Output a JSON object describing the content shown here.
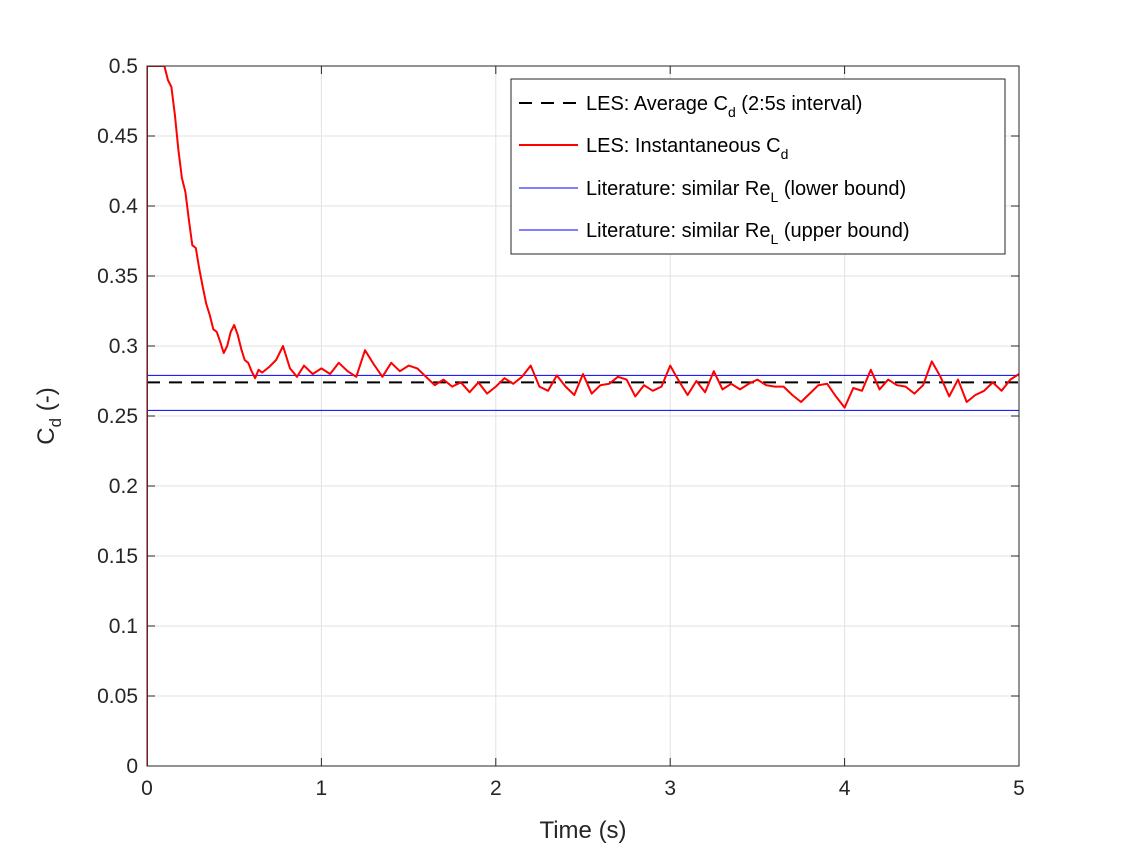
{
  "chart_data": {
    "type": "line",
    "xlabel": "Time (s)",
    "ylabel": {
      "main": "C",
      "sub": "d",
      "tail": " (-)"
    },
    "xlim": [
      0,
      5
    ],
    "ylim": [
      0,
      0.5
    ],
    "xticks": [
      0,
      1,
      2,
      3,
      4,
      5
    ],
    "yticks": [
      0,
      0.05,
      0.1,
      0.15,
      0.2,
      0.25,
      0.3,
      0.35,
      0.4,
      0.45,
      0.5
    ],
    "xtick_labels": [
      "0",
      "1",
      "2",
      "3",
      "4",
      "5"
    ],
    "ytick_labels": [
      "0",
      "0.05",
      "0.1",
      "0.15",
      "0.2",
      "0.25",
      "0.3",
      "0.35",
      "0.4",
      "0.45",
      "0.5"
    ],
    "grid": true,
    "legend_position": "top-right",
    "series": [
      {
        "key": "average",
        "legend": {
          "pre": "LES: Average C",
          "sub": "d",
          "post": " (2:5s interval)"
        },
        "color": "#000000",
        "style": "dashed",
        "x": [
          0,
          5
        ],
        "y": [
          0.274,
          0.274
        ]
      },
      {
        "key": "instantaneous",
        "legend": {
          "pre": "LES: Instantaneous C",
          "sub": "d",
          "post": ""
        },
        "color": "#ff0000",
        "style": "solid",
        "x": [
          0,
          0.0,
          0.01,
          0.02,
          0.04,
          0.06,
          0.08,
          0.1,
          0.12,
          0.14,
          0.16,
          0.18,
          0.2,
          0.22,
          0.24,
          0.26,
          0.28,
          0.3,
          0.32,
          0.34,
          0.36,
          0.38,
          0.4,
          0.42,
          0.44,
          0.46,
          0.48,
          0.5,
          0.52,
          0.54,
          0.56,
          0.58,
          0.6,
          0.62,
          0.64,
          0.66,
          0.7,
          0.74,
          0.78,
          0.82,
          0.86,
          0.9,
          0.95,
          1.0,
          1.05,
          1.1,
          1.15,
          1.2,
          1.25,
          1.3,
          1.35,
          1.4,
          1.45,
          1.5,
          1.55,
          1.6,
          1.65,
          1.7,
          1.75,
          1.8,
          1.85,
          1.9,
          1.95,
          2.0,
          2.05,
          2.1,
          2.15,
          2.2,
          2.25,
          2.3,
          2.35,
          2.4,
          2.45,
          2.5,
          2.55,
          2.6,
          2.65,
          2.7,
          2.75,
          2.8,
          2.85,
          2.9,
          2.95,
          3.0,
          3.05,
          3.1,
          3.15,
          3.2,
          3.25,
          3.3,
          3.35,
          3.4,
          3.45,
          3.5,
          3.55,
          3.6,
          3.65,
          3.7,
          3.75,
          3.8,
          3.85,
          3.9,
          3.95,
          4.0,
          4.05,
          4.1,
          4.15,
          4.2,
          4.25,
          4.3,
          4.35,
          4.4,
          4.45,
          4.5,
          4.55,
          4.6,
          4.65,
          4.7,
          4.75,
          4.8,
          4.85,
          4.9,
          4.95,
          5.0
        ],
        "y": [
          0,
          0.5,
          0.5,
          0.5,
          0.5,
          0.5,
          0.5,
          0.5,
          0.49,
          0.485,
          0.465,
          0.44,
          0.42,
          0.41,
          0.39,
          0.372,
          0.37,
          0.355,
          0.342,
          0.33,
          0.322,
          0.312,
          0.31,
          0.303,
          0.295,
          0.3,
          0.31,
          0.315,
          0.308,
          0.298,
          0.29,
          0.288,
          0.282,
          0.277,
          0.283,
          0.281,
          0.285,
          0.29,
          0.3,
          0.284,
          0.278,
          0.286,
          0.28,
          0.284,
          0.28,
          0.288,
          0.282,
          0.278,
          0.297,
          0.287,
          0.278,
          0.288,
          0.282,
          0.286,
          0.284,
          0.278,
          0.272,
          0.276,
          0.271,
          0.274,
          0.267,
          0.274,
          0.266,
          0.271,
          0.277,
          0.273,
          0.278,
          0.286,
          0.271,
          0.268,
          0.279,
          0.271,
          0.265,
          0.28,
          0.266,
          0.272,
          0.273,
          0.278,
          0.276,
          0.264,
          0.272,
          0.268,
          0.271,
          0.286,
          0.275,
          0.265,
          0.275,
          0.267,
          0.282,
          0.269,
          0.273,
          0.269,
          0.273,
          0.276,
          0.272,
          0.271,
          0.271,
          0.265,
          0.26,
          0.266,
          0.272,
          0.273,
          0.264,
          0.256,
          0.27,
          0.268,
          0.283,
          0.269,
          0.276,
          0.272,
          0.271,
          0.266,
          0.272,
          0.289,
          0.278,
          0.264,
          0.276,
          0.26,
          0.265,
          0.268,
          0.274,
          0.268,
          0.276,
          0.28
        ]
      },
      {
        "key": "lower",
        "legend": {
          "pre": "Literature: similar Re",
          "sub": "L",
          "post": " (lower bound)"
        },
        "color": "#0000ff",
        "style": "thin",
        "x": [
          0,
          5
        ],
        "y": [
          0.254,
          0.254
        ]
      },
      {
        "key": "upper",
        "legend": {
          "pre": "Literature: similar Re",
          "sub": "L",
          "post": " (upper bound)"
        },
        "color": "#0000ff",
        "style": "thin",
        "x": [
          0,
          5
        ],
        "y": [
          0.279,
          0.279
        ]
      }
    ]
  }
}
